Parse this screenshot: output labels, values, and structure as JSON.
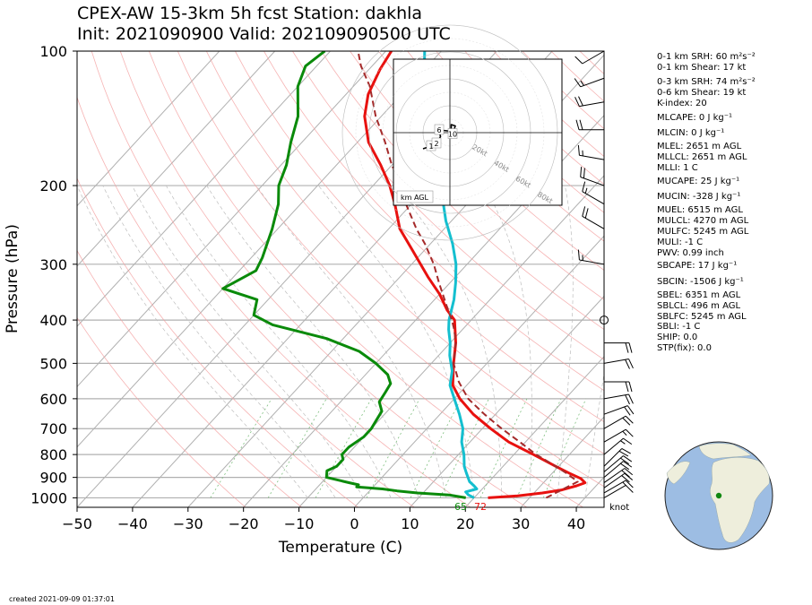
{
  "title": {
    "line1": "CPEX-AW 15-3km  5h fcst  Station: dakhla",
    "line2": "Init: 2021090900  Valid: 202109090500 UTC"
  },
  "created": "created 2021-09-09 01:37:01",
  "colors": {
    "temperature": "#e8110f",
    "dewpoint": "#0a8a0a",
    "virtual_or_wetbulb": "#14bfcf",
    "parcel": "#a52a2a",
    "dry_adiabat": "#f4a0a0",
    "moist_adiabat": "#bdbdbd",
    "mixing_ratio": "#7fbf7f",
    "isotherm": "#b0b0b0",
    "isobar": "#b0b0b0"
  },
  "surface_labels": {
    "dewpoint": "65",
    "temperature": "72"
  },
  "wind_units": "knot",
  "hodograph": {
    "label": "km AGL",
    "ring_labels": [
      "20kt",
      "40kt",
      "60kt",
      "80kt"
    ],
    "height_labels": [
      "1",
      "2",
      "6",
      "10"
    ]
  },
  "indices": [
    "0-1 km SRH: 60 m²s⁻²",
    "0-1 km Shear: 17 kt",
    "0-3 km SRH: 74 m²s⁻²",
    "0-6 km Shear: 19 kt",
    "K-index: 20",
    "MLCAPE: 0 J kg⁻¹",
    "MLCIN: 0 J kg⁻¹",
    "MLEL: 2651 m AGL",
    "MLLCL: 2651 m AGL",
    "MLLI: 1 C",
    "MUCAPE: 25 J kg⁻¹",
    "MUCIN: -328 J kg⁻¹",
    "MUEL: 6515 m AGL",
    "MULCL: 4270 m AGL",
    "MULFC: 5245 m AGL",
    "MULI: -1 C",
    "PWV: 0.99 inch",
    "SBCAPE: 17 J kg⁻¹",
    "SBCIN: -1506 J kg⁻¹",
    "SBEL: 6351 m AGL",
    "SBLCL: 496 m AGL",
    "SBLFC: 5245 m AGL",
    "SBLI: -1 C",
    "SHIP: 0.0",
    "STP(fix): 0.0"
  ],
  "chart_data": {
    "type": "line",
    "subtype": "skew-T log-p",
    "xlabel": "Temperature (C)",
    "ylabel": "Pressure (hPa)",
    "xlim": [
      -50,
      45
    ],
    "ylim": [
      1050,
      100
    ],
    "y_scale": "log",
    "x_ticks": [
      -50,
      -40,
      -30,
      -20,
      -10,
      0,
      10,
      20,
      30,
      40
    ],
    "y_ticks": [
      100,
      200,
      300,
      400,
      500,
      600,
      700,
      800,
      900,
      1000
    ],
    "legend": "none",
    "grid": true,
    "series": [
      {
        "key": "temperature",
        "points": [
          [
            1000,
            22.5
          ],
          [
            990,
            27.5
          ],
          [
            975,
            31.5
          ],
          [
            960,
            34.5
          ],
          [
            940,
            36.5
          ],
          [
            925,
            37.5
          ],
          [
            905,
            36
          ],
          [
            880,
            33
          ],
          [
            850,
            29.5
          ],
          [
            800,
            23.5
          ],
          [
            750,
            17
          ],
          [
            700,
            11.5
          ],
          [
            650,
            6
          ],
          [
            600,
            1
          ],
          [
            560,
            -2.5
          ],
          [
            500,
            -6
          ],
          [
            450,
            -9
          ],
          [
            400,
            -13
          ],
          [
            380,
            -16
          ],
          [
            350,
            -20
          ],
          [
            320,
            -25
          ],
          [
            280,
            -32
          ],
          [
            250,
            -38
          ],
          [
            220,
            -43
          ],
          [
            200,
            -47
          ],
          [
            180,
            -52
          ],
          [
            160,
            -58
          ],
          [
            140,
            -63
          ],
          [
            125,
            -66
          ],
          [
            110,
            -68
          ],
          [
            100,
            -69
          ]
        ]
      },
      {
        "key": "virtual_or_wetbulb",
        "points": [
          [
            1000,
            20
          ],
          [
            985,
            18.5
          ],
          [
            970,
            17.5
          ],
          [
            955,
            19
          ],
          [
            940,
            18
          ],
          [
            920,
            16.5
          ],
          [
            880,
            14.5
          ],
          [
            850,
            13
          ],
          [
            800,
            11
          ],
          [
            750,
            8.5
          ],
          [
            700,
            6.5
          ],
          [
            650,
            3.5
          ],
          [
            600,
            0
          ],
          [
            560,
            -3
          ],
          [
            520,
            -5
          ],
          [
            480,
            -8
          ],
          [
            450,
            -10
          ],
          [
            420,
            -12.5
          ],
          [
            400,
            -14
          ],
          [
            360,
            -16.5
          ],
          [
            330,
            -19
          ],
          [
            300,
            -22
          ],
          [
            270,
            -26
          ],
          [
            240,
            -31
          ],
          [
            210,
            -36
          ],
          [
            180,
            -42
          ],
          [
            160,
            -47
          ],
          [
            140,
            -52
          ],
          [
            125,
            -56
          ],
          [
            110,
            -60
          ],
          [
            100,
            -63
          ]
        ]
      },
      {
        "key": "dewpoint",
        "points": [
          [
            1000,
            18.5
          ],
          [
            985,
            15
          ],
          [
            975,
            9
          ],
          [
            965,
            5
          ],
          [
            955,
            2
          ],
          [
            945,
            -3
          ],
          [
            935,
            -3
          ],
          [
            925,
            -5
          ],
          [
            900,
            -10
          ],
          [
            870,
            -11
          ],
          [
            850,
            -10
          ],
          [
            820,
            -10
          ],
          [
            800,
            -11
          ],
          [
            770,
            -11
          ],
          [
            730,
            -10
          ],
          [
            700,
            -10
          ],
          [
            670,
            -10.5
          ],
          [
            640,
            -11
          ],
          [
            610,
            -13
          ],
          [
            580,
            -13.5
          ],
          [
            555,
            -14
          ],
          [
            530,
            -16
          ],
          [
            500,
            -20
          ],
          [
            470,
            -25
          ],
          [
            440,
            -33
          ],
          [
            410,
            -45
          ],
          [
            390,
            -50
          ],
          [
            360,
            -52
          ],
          [
            340,
            -60
          ],
          [
            310,
            -57
          ],
          [
            290,
            -58
          ],
          [
            250,
            -61
          ],
          [
            220,
            -64
          ],
          [
            200,
            -67
          ],
          [
            180,
            -69
          ],
          [
            160,
            -72
          ],
          [
            140,
            -75
          ],
          [
            120,
            -80
          ],
          [
            108,
            -82
          ],
          [
            100,
            -81
          ]
        ]
      },
      {
        "key": "parcel",
        "dashed": true,
        "points": [
          [
            1000,
            33
          ],
          [
            920,
            36
          ],
          [
            880,
            32.5
          ],
          [
            850,
            29.5
          ],
          [
            800,
            24
          ],
          [
            750,
            19
          ],
          [
            700,
            13.5
          ],
          [
            650,
            8
          ],
          [
            600,
            2.5
          ],
          [
            550,
            -2
          ],
          [
            500,
            -6
          ],
          [
            450,
            -9
          ],
          [
            420,
            -11.5
          ],
          [
            400,
            -13.5
          ],
          [
            370,
            -17
          ],
          [
            330,
            -22
          ],
          [
            300,
            -26
          ],
          [
            270,
            -31
          ],
          [
            250,
            -35
          ],
          [
            220,
            -41
          ],
          [
            200,
            -45
          ],
          [
            180,
            -50
          ],
          [
            160,
            -55
          ],
          [
            140,
            -61
          ],
          [
            120,
            -67
          ],
          [
            108,
            -72
          ],
          [
            100,
            -75
          ]
        ]
      }
    ],
    "wind_barbs_kt": [
      {
        "p": 1000,
        "speed": 10,
        "dir": 60
      },
      {
        "p": 975,
        "speed": 15,
        "dir": 60
      },
      {
        "p": 950,
        "speed": 20,
        "dir": 55
      },
      {
        "p": 925,
        "speed": 20,
        "dir": 55
      },
      {
        "p": 900,
        "speed": 20,
        "dir": 50
      },
      {
        "p": 875,
        "speed": 20,
        "dir": 50
      },
      {
        "p": 850,
        "speed": 20,
        "dir": 45
      },
      {
        "p": 800,
        "speed": 15,
        "dir": 50
      },
      {
        "p": 750,
        "speed": 15,
        "dir": 60
      },
      {
        "p": 700,
        "speed": 20,
        "dir": 60
      },
      {
        "p": 650,
        "speed": 20,
        "dir": 70
      },
      {
        "p": 600,
        "speed": 20,
        "dir": 80
      },
      {
        "p": 550,
        "speed": 20,
        "dir": 90
      },
      {
        "p": 500,
        "speed": 20,
        "dir": 80
      },
      {
        "p": 450,
        "speed": 20,
        "dir": 90
      },
      {
        "p": 400,
        "speed": 0,
        "dir": 0
      },
      {
        "p": 300,
        "speed": 15,
        "dir": 280
      },
      {
        "p": 250,
        "speed": 20,
        "dir": 300
      },
      {
        "p": 220,
        "speed": 15,
        "dir": 300
      },
      {
        "p": 200,
        "speed": 20,
        "dir": 290
      },
      {
        "p": 175,
        "speed": 15,
        "dir": 280
      },
      {
        "p": 150,
        "speed": 20,
        "dir": 270
      },
      {
        "p": 130,
        "speed": 20,
        "dir": 260
      },
      {
        "p": 115,
        "speed": 15,
        "dir": 250
      },
      {
        "p": 100,
        "speed": 10,
        "dir": 240
      }
    ],
    "hodograph_kt": [
      {
        "km": 0,
        "u": -20,
        "v": -12
      },
      {
        "km": 1,
        "u": -14,
        "v": -10
      },
      {
        "km": 2,
        "u": -10,
        "v": -8
      },
      {
        "km": 3,
        "u": -7,
        "v": -3
      },
      {
        "km": 6,
        "u": -8,
        "v": 2
      },
      {
        "km": 7,
        "u": 1,
        "v": 1
      },
      {
        "km": 8,
        "u": 1,
        "v": 6
      },
      {
        "km": 9,
        "u": 4,
        "v": 5
      },
      {
        "km": 10,
        "u": 2,
        "v": -1
      }
    ]
  }
}
